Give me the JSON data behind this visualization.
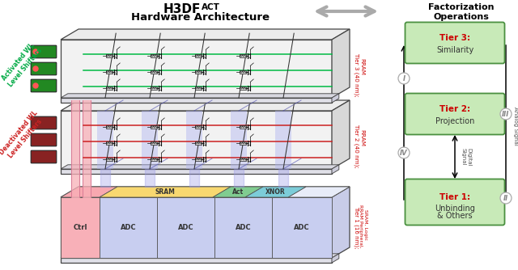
{
  "title_main": "H3DF",
  "title_super": "ACT",
  "title_sub": "Hardware Architecture",
  "right_title": "Factorization\nOperations",
  "tier_box_color": "#c8eab8",
  "tier_box_border": "#4a9040",
  "tier_label_color": "#cc0000",
  "activated_color": "#00aa44",
  "deactivated_color": "#cc2222",
  "tier3_line_color": "#00bb44",
  "tier2_line_color": "#cc2222",
  "tier1_ctrl_color": "#f8b0b8",
  "tier1_adc_color": "#c8cef0",
  "tier1_sram_color": "#f8d880",
  "tier1_act_color": "#88cc98",
  "tier1_xnor_color": "#88ccd8",
  "ls3_color": "#228822",
  "ls2_color": "#882222",
  "blue_col_color": "#9898e8",
  "pink_col_color": "#f8b0b0",
  "arrow_gray": "#b0b0b0"
}
